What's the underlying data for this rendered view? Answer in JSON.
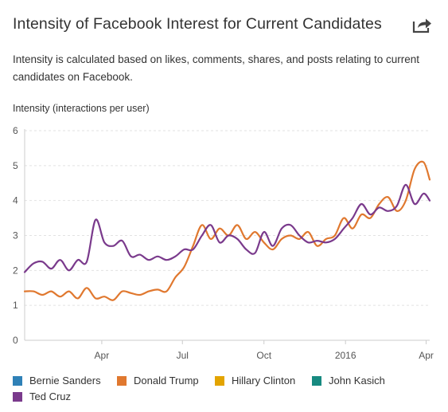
{
  "header": {
    "title": "Intensity of Facebook Interest for Current Candidates",
    "subtitle": "Intensity is calculated based on likes, comments, shares, and posts relating to current candidates on Facebook.",
    "share_icon": "share-icon"
  },
  "colors": {
    "bernie": "#2f81b7",
    "trump": "#e0782f",
    "clinton": "#e3a400",
    "kasich": "#178a80",
    "cruz": "#7a3a8c",
    "grid": "#e2e2e2",
    "axis": "#cccccc"
  },
  "legend": [
    {
      "label": "Bernie Sanders",
      "color": "#2f81b7"
    },
    {
      "label": "Donald Trump",
      "color": "#e0782f"
    },
    {
      "label": "Hillary Clinton",
      "color": "#e3a400"
    },
    {
      "label": "John Kasich",
      "color": "#178a80"
    },
    {
      "label": "Ted Cruz",
      "color": "#7a3a8c"
    }
  ],
  "chart_data": {
    "type": "line",
    "title": "",
    "xlabel": "",
    "ylabel": "Intensity (interactions per user)",
    "ylim": [
      0,
      6
    ],
    "xlim": [
      "2015-01-04",
      "2016-04-05"
    ],
    "y_ticks": [
      "0",
      "1",
      "2",
      "3",
      "4",
      "5",
      "6"
    ],
    "x_ticks": [
      {
        "label": "Apr",
        "date": "2015-04-01"
      },
      {
        "label": "Jul",
        "date": "2015-07-01"
      },
      {
        "label": "Oct",
        "date": "2015-10-01"
      },
      {
        "label": "2016",
        "date": "2016-01-01"
      },
      {
        "label": "Apr",
        "date": "2016-04-01"
      }
    ],
    "grid": true,
    "legend_position": "bottom",
    "series": [
      {
        "name": "Donald Trump",
        "color": "#e0782f",
        "x": [
          "2015-01-04",
          "2015-01-14",
          "2015-01-24",
          "2015-02-03",
          "2015-02-13",
          "2015-02-23",
          "2015-03-05",
          "2015-03-15",
          "2015-03-25",
          "2015-04-04",
          "2015-04-14",
          "2015-04-24",
          "2015-05-04",
          "2015-05-14",
          "2015-05-24",
          "2015-06-03",
          "2015-06-13",
          "2015-06-23",
          "2015-07-03",
          "2015-07-13",
          "2015-07-23",
          "2015-08-02",
          "2015-08-12",
          "2015-08-22",
          "2015-09-01",
          "2015-09-11",
          "2015-09-21",
          "2015-10-01",
          "2015-10-11",
          "2015-10-21",
          "2015-10-31",
          "2015-11-10",
          "2015-11-20",
          "2015-11-30",
          "2015-12-10",
          "2015-12-20",
          "2015-12-30",
          "2016-01-09",
          "2016-01-19",
          "2016-01-29",
          "2016-02-08",
          "2016-02-18",
          "2016-02-28",
          "2016-03-09",
          "2016-03-19",
          "2016-03-29",
          "2016-04-05"
        ],
        "y": [
          1.4,
          1.4,
          1.3,
          1.4,
          1.25,
          1.4,
          1.2,
          1.5,
          1.2,
          1.25,
          1.15,
          1.4,
          1.35,
          1.3,
          1.4,
          1.45,
          1.4,
          1.8,
          2.1,
          2.7,
          3.3,
          2.9,
          3.2,
          3.0,
          3.3,
          2.9,
          3.1,
          2.8,
          2.6,
          2.9,
          3.0,
          2.9,
          3.1,
          2.7,
          2.9,
          3.0,
          3.5,
          3.2,
          3.6,
          3.5,
          3.9,
          4.1,
          3.7,
          4.0,
          4.9,
          5.1,
          4.6
        ]
      },
      {
        "name": "Ted Cruz",
        "color": "#7a3a8c",
        "x": [
          "2015-01-04",
          "2015-01-14",
          "2015-01-24",
          "2015-02-03",
          "2015-02-13",
          "2015-02-23",
          "2015-03-05",
          "2015-03-15",
          "2015-03-25",
          "2015-04-04",
          "2015-04-14",
          "2015-04-24",
          "2015-05-04",
          "2015-05-14",
          "2015-05-24",
          "2015-06-03",
          "2015-06-13",
          "2015-06-23",
          "2015-07-03",
          "2015-07-13",
          "2015-07-23",
          "2015-08-02",
          "2015-08-12",
          "2015-08-22",
          "2015-09-01",
          "2015-09-11",
          "2015-09-21",
          "2015-10-01",
          "2015-10-11",
          "2015-10-21",
          "2015-10-31",
          "2015-11-10",
          "2015-11-20",
          "2015-11-30",
          "2015-12-10",
          "2015-12-20",
          "2015-12-30",
          "2016-01-09",
          "2016-01-19",
          "2016-01-29",
          "2016-02-08",
          "2016-02-18",
          "2016-02-28",
          "2016-03-09",
          "2016-03-19",
          "2016-03-29",
          "2016-04-05"
        ],
        "y": [
          1.95,
          2.2,
          2.25,
          2.05,
          2.3,
          2.0,
          2.3,
          2.25,
          3.45,
          2.8,
          2.7,
          2.85,
          2.4,
          2.45,
          2.3,
          2.4,
          2.3,
          2.4,
          2.6,
          2.6,
          3.0,
          3.3,
          2.8,
          3.0,
          2.9,
          2.6,
          2.5,
          3.1,
          2.7,
          3.2,
          3.3,
          3.0,
          2.8,
          2.85,
          2.8,
          2.9,
          3.2,
          3.5,
          3.9,
          3.6,
          3.8,
          3.7,
          3.85,
          4.45,
          3.9,
          4.2,
          4.0
        ]
      }
    ]
  }
}
